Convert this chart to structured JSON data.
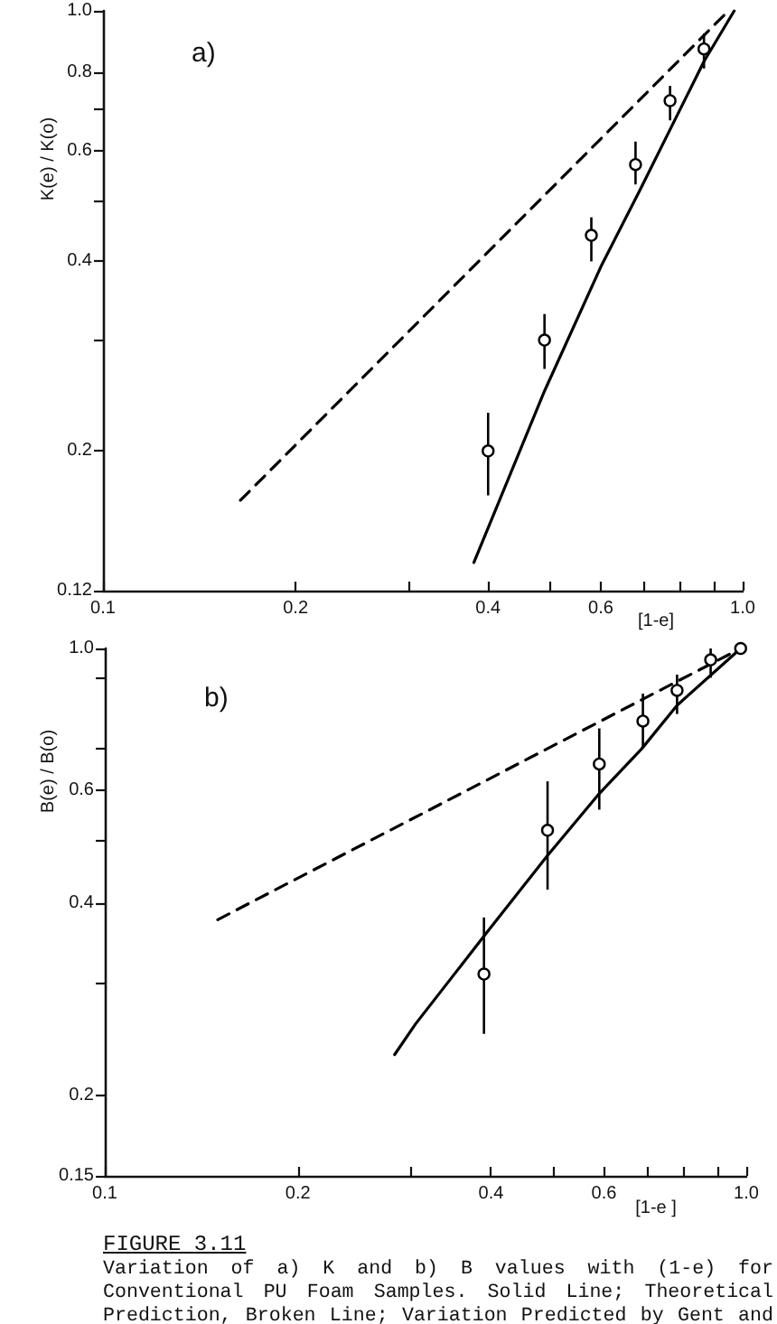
{
  "chart_data": [
    {
      "type": "line",
      "title": "a)",
      "xlabel": "[1-e]",
      "ylabel": "K(e) / K(o)",
      "log": "xy",
      "xlim": [
        0.1,
        1
      ],
      "ylim": [
        0.12,
        1
      ],
      "xticks": [
        0.1,
        0.2,
        {
          "value": 0.3,
          "label": null
        },
        0.4,
        {
          "value": 0.5,
          "label": null
        },
        0.6,
        {
          "value": 0.7,
          "label": null
        },
        {
          "value": 0.8,
          "label": null
        },
        {
          "value": 0.9,
          "label": null
        },
        {
          "value": 1,
          "label": "1.0"
        }
      ],
      "yticks": [
        0.12,
        0.2,
        {
          "value": 0.3,
          "label": null
        },
        0.4,
        {
          "value": 0.5,
          "label": null
        },
        0.6,
        {
          "value": 0.7,
          "label": null
        },
        0.8,
        {
          "value": 1,
          "label": "1.0"
        }
      ],
      "series": [
        {
          "type": "scatter",
          "color": "#000000",
          "marker": "circle",
          "x": [
            0.4,
            0.49,
            0.58,
            0.68,
            0.77,
            0.87
          ],
          "values": [
            0.2,
            0.3,
            0.44,
            0.57,
            0.72,
            0.87
          ],
          "errors": [
            [
              0.17,
              0.23
            ],
            [
              0.27,
              0.33
            ],
            [
              0.4,
              0.47
            ],
            [
              0.53,
              0.62
            ],
            [
              0.67,
              0.76
            ],
            [
              0.81,
              0.92
            ]
          ]
        },
        {
          "type": "line",
          "color": "#000000",
          "marker": "none",
          "line_style": "solid",
          "x": [
            0.38,
            0.49,
            0.6,
            0.69,
            0.87,
            0.97
          ],
          "values": [
            0.133,
            0.249,
            0.392,
            0.518,
            0.831,
            1.0
          ]
        },
        {
          "type": "line",
          "color": "#000000",
          "marker": "none",
          "line_style": "dashed",
          "x": [
            0.164,
            0.95
          ],
          "values": [
            0.167,
            1.0
          ]
        }
      ]
    },
    {
      "type": "line",
      "title": "b)",
      "xlabel": "[1-e ]",
      "ylabel": "B(e) / B(o)",
      "log": "xy",
      "xlim": [
        0.1,
        1
      ],
      "ylim": [
        0.15,
        1
      ],
      "xticks": [
        0.1,
        0.2,
        {
          "value": 0.3,
          "label": null
        },
        0.4,
        {
          "value": 0.5,
          "label": null
        },
        0.6,
        {
          "value": 0.7,
          "label": null
        },
        {
          "value": 0.8,
          "label": null
        },
        {
          "value": 0.9,
          "label": null
        },
        {
          "value": 1,
          "label": "1.0"
        }
      ],
      "yticks": [
        0.15,
        0.2,
        {
          "value": 0.3,
          "label": null
        },
        0.4,
        {
          "value": 0.5,
          "label": null
        },
        0.6,
        {
          "value": 0.7,
          "label": null
        },
        {
          "value": 0.9,
          "label": null
        },
        {
          "value": 1,
          "label": "1.0"
        }
      ],
      "series": [
        {
          "type": "scatter",
          "color": "#000000",
          "marker": "circle",
          "x": [
            0.39,
            0.49,
            0.59,
            0.69,
            0.78,
            0.88,
            0.98
          ],
          "values": [
            0.31,
            0.52,
            0.66,
            0.77,
            0.86,
            0.96,
            1.0
          ],
          "errors": [
            [
              0.25,
              0.38
            ],
            [
              0.42,
              0.62
            ],
            [
              0.56,
              0.75
            ],
            [
              0.7,
              0.85
            ],
            [
              0.79,
              0.91
            ],
            [
              0.9,
              1.0
            ],
            null
          ]
        },
        {
          "type": "line",
          "color": "#000000",
          "marker": "none",
          "line_style": "solid",
          "x": [
            0.283,
            0.305,
            0.394,
            0.49,
            0.587,
            0.687,
            0.78,
            0.98
          ],
          "values": [
            0.232,
            0.259,
            0.36,
            0.475,
            0.59,
            0.697,
            0.815,
            1.0
          ]
        },
        {
          "type": "line",
          "color": "#000000",
          "marker": "none",
          "line_style": "dashed",
          "x": [
            0.15,
            0.98
          ],
          "values": [
            0.377,
            1.0
          ]
        }
      ],
      "annotations": [
        "FIGURE 3.11",
        "Variation of a) K and b) B values with (1-e) for Conventional PU Foam Samples. Solid Line; Theoretical Prediction, Broken Line; Variation Predicted by Gent and"
      ]
    }
  ]
}
